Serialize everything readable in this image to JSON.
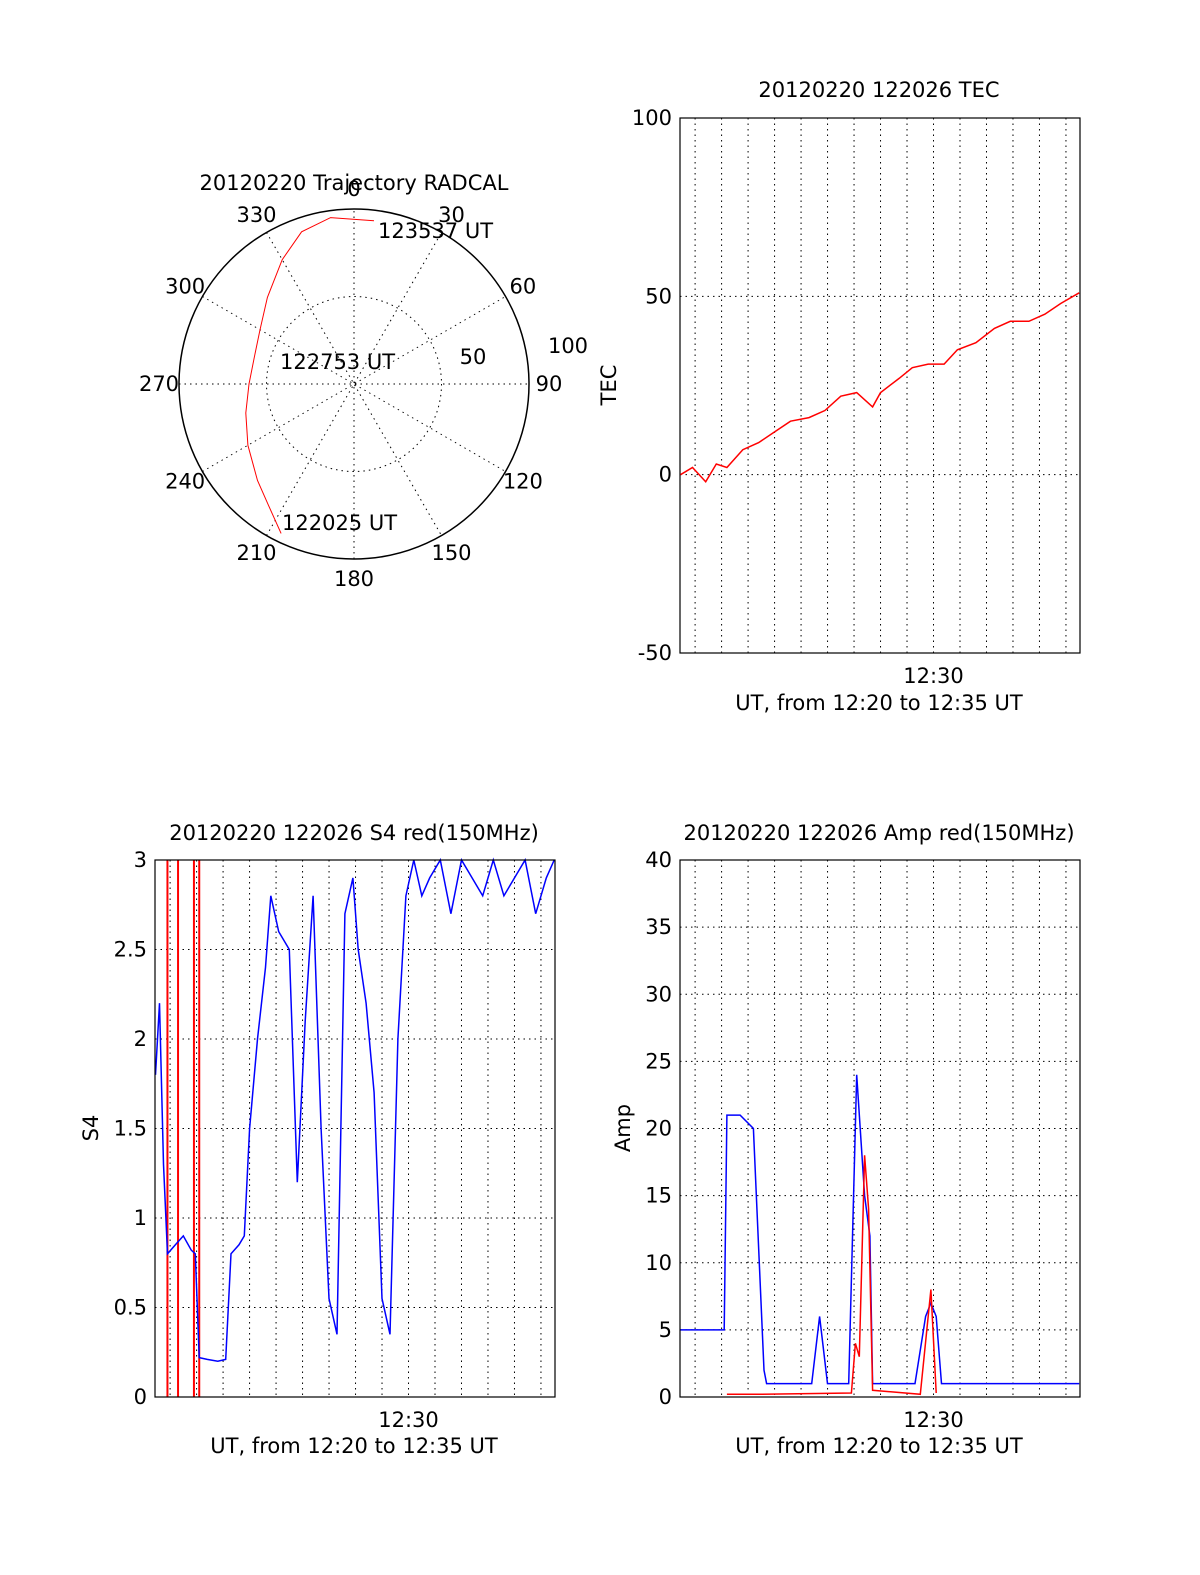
{
  "chart_data": [
    {
      "type": "polar",
      "title": "20120220 Trajectory RADCAL",
      "angle_ticks": [
        "0",
        "30",
        "60",
        "90",
        "120",
        "150",
        "180",
        "210",
        "240",
        "270",
        "300",
        "330"
      ],
      "radial_ticks": [
        "100",
        "50"
      ],
      "rlim": [
        0,
        100
      ],
      "grid": true,
      "trajectory": {
        "color": "#ff0000",
        "points": [
          {
            "az": 206,
            "zenith": 95
          },
          {
            "az": 215,
            "zenith": 85
          },
          {
            "az": 225,
            "zenith": 78
          },
          {
            "az": 240,
            "zenith": 70
          },
          {
            "az": 255,
            "zenith": 64
          },
          {
            "az": 270,
            "zenith": 60
          },
          {
            "az": 285,
            "zenith": 59
          },
          {
            "az": 300,
            "zenith": 62
          },
          {
            "az": 315,
            "zenith": 70
          },
          {
            "az": 330,
            "zenith": 82
          },
          {
            "az": 341,
            "zenith": 92
          },
          {
            "az": 352,
            "zenith": 96
          },
          {
            "az": 7,
            "zenith": 94
          }
        ]
      },
      "annotations": [
        {
          "text": "123537 UT",
          "at": "end"
        },
        {
          "text": "122753 UT",
          "at": "center"
        },
        {
          "text": "122025 UT",
          "at": "start"
        }
      ]
    },
    {
      "type": "line",
      "title": "20120220 122026 TEC",
      "ylabel": "TEC",
      "xlabel": "UT, from 12:20 to 12:35 UT",
      "xlim": [
        20.43,
        35.53
      ],
      "ylim": [
        -50,
        100
      ],
      "yticks": [
        "100",
        "50",
        "0",
        "-50"
      ],
      "xticks": [
        {
          "value": 30,
          "label": "12:30"
        }
      ],
      "xgrid_step_minutes": 1,
      "series": [
        {
          "color": "#ff0000",
          "x": [
            20.45,
            20.9,
            21.4,
            21.8,
            22.2,
            22.8,
            23.4,
            24.0,
            24.6,
            25.3,
            25.9,
            26.5,
            27.1,
            27.7,
            28.0,
            28.7,
            29.2,
            29.8,
            30.4,
            30.9,
            31.6,
            32.3,
            32.9,
            33.6,
            34.2,
            34.8,
            35.5
          ],
          "y": [
            0,
            2,
            -2,
            3,
            2,
            7,
            9,
            12,
            15,
            16,
            18,
            22,
            23,
            19,
            23,
            27,
            30,
            31,
            31,
            35,
            37,
            41,
            43,
            43,
            45,
            48,
            51
          ]
        }
      ]
    },
    {
      "type": "line",
      "title": "20120220 122026 S4 red(150MHz)",
      "ylabel": "S4",
      "xlabel": "UT, from 12:20 to 12:35 UT",
      "xlim": [
        20.43,
        35.53
      ],
      "ylim": [
        0,
        3
      ],
      "yticks": [
        "3",
        "2.5",
        "2",
        "1.5",
        "1",
        "0.5",
        "0"
      ],
      "xticks": [
        {
          "value": 30,
          "label": "12:30"
        }
      ],
      "xgrid_step_minutes": 1,
      "series": [
        {
          "color": "#ff0000",
          "x": [
            20.9,
            21.3,
            21.9,
            22.1
          ],
          "y": [
            3,
            3,
            3,
            3
          ],
          "note_spikes_only": true
        },
        {
          "color": "#0000ff",
          "x": [
            20.45,
            20.6,
            20.75,
            20.9,
            21.2,
            21.5,
            21.8,
            21.95,
            22.1,
            22.4,
            22.8,
            23.1,
            23.3,
            23.6,
            23.8,
            24.0,
            24.3,
            24.6,
            24.8,
            25.1,
            25.5,
            25.8,
            26.1,
            26.4,
            26.7,
            27.0,
            27.3,
            27.6,
            27.9,
            28.1,
            28.4,
            28.7,
            29.0,
            29.3,
            29.6,
            29.9,
            30.2,
            30.5,
            30.8,
            31.2,
            31.6,
            32.0,
            32.4,
            32.8,
            33.2,
            33.6,
            34.0,
            34.4,
            34.8,
            35.2,
            35.5
          ],
          "y": [
            1.8,
            2.2,
            1.3,
            0.8,
            0.85,
            0.9,
            0.82,
            0.8,
            0.22,
            0.21,
            0.2,
            0.21,
            0.8,
            0.85,
            0.9,
            1.5,
            2.0,
            2.4,
            2.8,
            2.6,
            2.5,
            1.2,
            2.1,
            2.8,
            1.5,
            0.55,
            0.35,
            2.7,
            2.9,
            2.5,
            2.2,
            1.7,
            0.55,
            0.35,
            2.0,
            2.8,
            3.0,
            2.8,
            2.9,
            3.0,
            2.7,
            3.0,
            2.9,
            2.8,
            3.0,
            2.8,
            2.9,
            3.0,
            2.7,
            2.9,
            3.0
          ]
        }
      ]
    },
    {
      "type": "line",
      "title": "20120220 122026 Amp red(150MHz)",
      "ylabel": "Amp",
      "xlabel": "UT, from 12:20 to 12:35 UT",
      "xlim": [
        20.43,
        35.53
      ],
      "ylim": [
        0,
        40
      ],
      "yticks": [
        "40",
        "35",
        "30",
        "25",
        "20",
        "15",
        "10",
        "5",
        "0"
      ],
      "xticks": [
        {
          "value": 30,
          "label": "12:30"
        }
      ],
      "xgrid_step_minutes": 1,
      "series": [
        {
          "color": "#0000ff",
          "x": [
            20.45,
            20.9,
            21.5,
            22.1,
            22.2,
            22.7,
            23.2,
            23.6,
            23.7,
            24.5,
            25.4,
            25.7,
            26.0,
            26.3,
            26.8,
            27.1,
            27.4,
            27.6,
            27.7,
            28.5,
            29.3,
            29.7,
            29.9,
            30.1,
            30.3,
            31.0,
            32.0,
            33.0,
            34.0,
            35.0,
            35.5
          ],
          "y": [
            5,
            5,
            5,
            5,
            21,
            21,
            20,
            2,
            1,
            1,
            1,
            6,
            1,
            1,
            1,
            24,
            15,
            12,
            1,
            1,
            1,
            6,
            7,
            6,
            1,
            1,
            1,
            1,
            1,
            1,
            1
          ]
        },
        {
          "color": "#ff0000",
          "x": [
            22.2,
            23.5,
            26.9,
            27.05,
            27.2,
            27.4,
            27.55,
            27.7,
            29.5,
            29.9,
            30.1
          ],
          "y": [
            0.2,
            0.2,
            0.3,
            4,
            3,
            18,
            14,
            0.5,
            0.2,
            8,
            0.3
          ]
        }
      ]
    }
  ]
}
